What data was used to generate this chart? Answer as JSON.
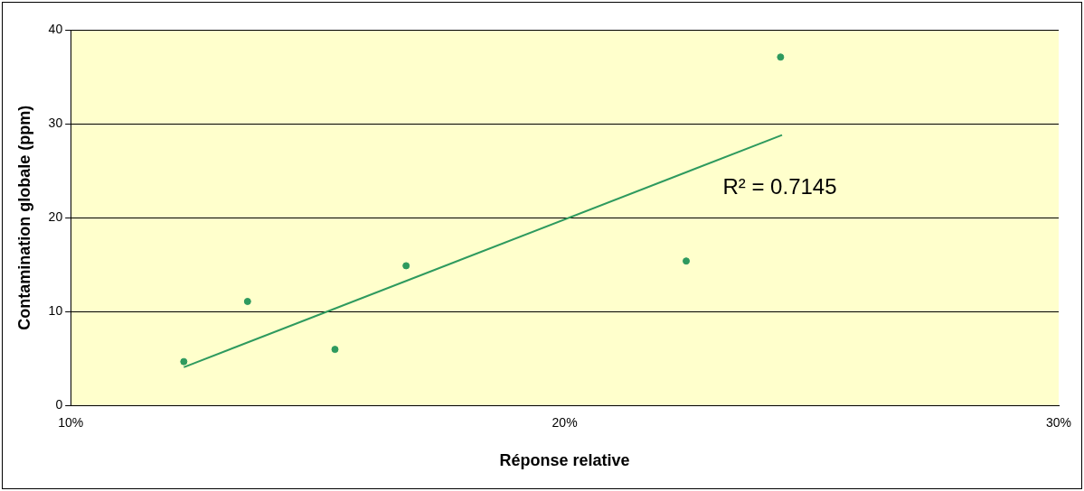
{
  "chart_data": {
    "type": "scatter",
    "xlabel": "Réponse relative",
    "ylabel": "Contamination globale (ppm)",
    "xlim": [
      10,
      30
    ],
    "xticks": [
      {
        "value": 10,
        "label": "10%"
      },
      {
        "value": 20,
        "label": "20%"
      },
      {
        "value": 30,
        "label": "30%"
      }
    ],
    "ylim": [
      0,
      40
    ],
    "yticks": [
      0,
      10,
      20,
      30,
      40
    ],
    "grid": "y",
    "legend": false,
    "marker": "circle",
    "series": [
      {
        "type": "scatter",
        "color": "#2e9a5e",
        "x": [
          12.29,
          13.58,
          15.35,
          16.79,
          22.46,
          24.37
        ],
        "values": [
          4.7,
          11.1,
          6.0,
          14.9,
          15.4,
          37.1
        ]
      },
      {
        "type": "line",
        "color": "#2e9a5e",
        "marker": "none",
        "x": [
          12.29,
          24.4
        ],
        "values": [
          4.1,
          28.8
        ]
      }
    ],
    "annotations": [
      "R² = 0.7145"
    ]
  }
}
